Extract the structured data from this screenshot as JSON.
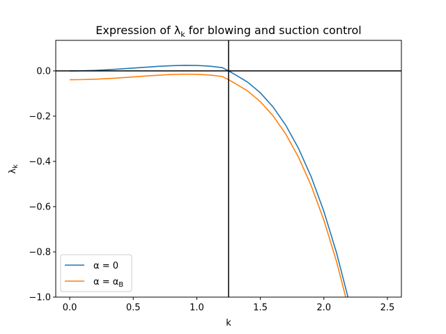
{
  "chart_data": {
    "type": "line",
    "title": "Expression of λ",
    "title_sub": "k",
    "title_rest": " for blowing and suction control",
    "xlabel": "k",
    "ylabel": "λ",
    "ylabel_sub": "k",
    "xlim": [
      -0.11,
      2.61
    ],
    "ylim": [
      -1.0,
      0.135
    ],
    "xticks": [
      0.0,
      0.5,
      1.0,
      1.5,
      2.0,
      2.5
    ],
    "xtick_labels": [
      "0.0",
      "0.5",
      "1.0",
      "1.5",
      "2.0",
      "2.5"
    ],
    "yticks": [
      0.0,
      -0.2,
      -0.4,
      -0.6,
      -0.8,
      -1.0
    ],
    "ytick_labels": [
      "0.0",
      "−0.2",
      "−0.4",
      "−0.6",
      "−0.8",
      "−1.0"
    ],
    "reference_lines": {
      "vertical_x": 1.25,
      "horizontal_y": 0.0,
      "color": "#000000"
    },
    "legend_position": "lower-left",
    "series": [
      {
        "name": "α = 0",
        "name_base": "α = 0",
        "name_sub": "",
        "color": "#1f77b4",
        "x": [
          0.0,
          0.1,
          0.2,
          0.3,
          0.4,
          0.5,
          0.6,
          0.7,
          0.8,
          0.9,
          1.0,
          1.1,
          1.2,
          1.25,
          1.3,
          1.4,
          1.5,
          1.6,
          1.7,
          1.8,
          1.9,
          2.0,
          2.1,
          2.2
        ],
        "y": [
          0.0,
          0.00061,
          0.00237,
          0.00511,
          0.00857,
          0.01245,
          0.01643,
          0.02008,
          0.02293,
          0.02443,
          0.02398,
          0.02091,
          0.01446,
          0.0,
          -0.01594,
          -0.04973,
          -0.09677,
          -0.15945,
          -0.2403,
          -0.34211,
          -0.4679,
          -0.62092,
          -0.80469,
          -1.02299
        ]
      },
      {
        "name": "α = αB",
        "name_base": "α = α",
        "name_sub": "B",
        "color": "#ff7f0e",
        "x": [
          0.0,
          0.1,
          0.2,
          0.3,
          0.4,
          0.5,
          0.6,
          0.7,
          0.8,
          0.9,
          1.0,
          1.1,
          1.2,
          1.25,
          1.3,
          1.4,
          1.5,
          1.6,
          1.7,
          1.8,
          1.9,
          2.0,
          2.1,
          2.2
        ],
        "y": [
          -0.039,
          -0.03839,
          -0.03663,
          -0.03389,
          -0.03043,
          -0.02655,
          -0.02257,
          -0.01892,
          -0.01607,
          -0.01457,
          -0.01502,
          -0.01809,
          -0.02454,
          -0.039,
          -0.05494,
          -0.08873,
          -0.13577,
          -0.19845,
          -0.2793,
          -0.38111,
          -0.5069,
          -0.65992,
          -0.84369,
          -1.06199
        ]
      }
    ]
  }
}
